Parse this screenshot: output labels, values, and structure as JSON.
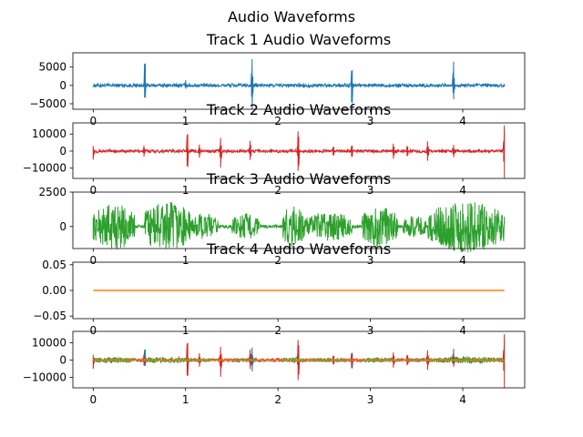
{
  "suptitle": "Audio Waveforms",
  "chart_data": [
    {
      "type": "line",
      "title": "Track 1 Audio Waveforms",
      "xlim": [
        0,
        4.45
      ],
      "ylim": [
        -6500,
        8900
      ],
      "yticks": [
        -5000,
        0,
        5000
      ],
      "xticks": [
        0,
        1,
        2,
        3,
        4
      ],
      "series": [
        {
          "color": "#1f77b4",
          "baseline_amp": 500,
          "spikes": [
            [
              0.56,
              8600,
              -4800
            ],
            [
              1.0,
              1600,
              -1000
            ],
            [
              1.72,
              7600,
              -7000
            ],
            [
              2.8,
              5900,
              -6800
            ],
            [
              3.9,
              7200,
              -4200
            ]
          ]
        }
      ]
    },
    {
      "type": "line",
      "title": "Track 2 Audio Waveforms",
      "xlim": [
        0,
        4.45
      ],
      "ylim": [
        -16000,
        16500
      ],
      "yticks": [
        -10000,
        0,
        10000
      ],
      "xticks": [
        0,
        1,
        2,
        3,
        4
      ],
      "series": [
        {
          "color": "#d62728",
          "baseline_amp": 900,
          "spikes": [
            [
              0.0,
              3000,
              -5000
            ],
            [
              0.55,
              3500,
              -3500
            ],
            [
              1.02,
              14000,
              -13000
            ],
            [
              1.15,
              4000,
              -4000
            ],
            [
              1.38,
              8000,
              -10000
            ],
            [
              1.7,
              7000,
              -6000
            ],
            [
              2.22,
              14500,
              -14500
            ],
            [
              2.6,
              3500,
              -3500
            ],
            [
              2.8,
              4500,
              -4500
            ],
            [
              3.25,
              5000,
              -5000
            ],
            [
              3.4,
              4000,
              -4000
            ],
            [
              3.62,
              6000,
              -6000
            ],
            [
              3.9,
              4000,
              -4000
            ],
            [
              4.45,
              15000,
              -16000
            ]
          ]
        }
      ]
    },
    {
      "type": "line",
      "title": "Track 3 Audio Waveforms",
      "xlim": [
        0,
        4.45
      ],
      "ylim": [
        -1600,
        2500
      ],
      "yticks": [
        0,
        2500
      ],
      "xticks": [
        0,
        1,
        2,
        3,
        4
      ],
      "series": [
        {
          "color": "#2ca02c",
          "baseline_amp": 500,
          "bursts": [
            [
              0.0,
              0.45,
              1700
            ],
            [
              0.55,
              1.05,
              1900
            ],
            [
              1.05,
              1.35,
              1000
            ],
            [
              1.5,
              1.8,
              1000
            ],
            [
              2.05,
              2.3,
              1600
            ],
            [
              2.3,
              2.8,
              1100
            ],
            [
              2.9,
              3.3,
              1500
            ],
            [
              3.35,
              3.6,
              800
            ],
            [
              3.62,
              4.45,
              1900
            ]
          ]
        }
      ]
    },
    {
      "type": "line",
      "title": "Track 4 Audio Waveforms",
      "xlim": [
        0,
        4.45
      ],
      "ylim": [
        -0.055,
        0.055
      ],
      "yticks": [
        -0.05,
        0.0,
        0.05
      ],
      "ytick_labels": [
        "−0.05",
        "0.00",
        "0.05"
      ],
      "xticks": [
        0,
        1,
        2,
        3,
        4
      ],
      "series": [
        {
          "color": "#ff7f0e",
          "constant": 0
        }
      ]
    },
    {
      "type": "line",
      "title": "",
      "xlim": [
        0,
        4.45
      ],
      "ylim": [
        -16000,
        16500
      ],
      "yticks": [
        -10000,
        0,
        10000
      ],
      "xticks": [
        0,
        1,
        2,
        3,
        4
      ],
      "series": [
        {
          "color": "#1f77b4",
          "baseline_amp": 500,
          "spikes": [
            [
              0.56,
              8600,
              -4800
            ],
            [
              1.72,
              7600,
              -7000
            ],
            [
              2.8,
              5900,
              -6800
            ],
            [
              3.9,
              7200,
              -4200
            ]
          ]
        },
        {
          "color": "#d62728",
          "baseline_amp": 900,
          "spikes": [
            [
              0.0,
              3000,
              -5000
            ],
            [
              0.55,
              3500,
              -3500
            ],
            [
              1.02,
              14000,
              -13000
            ],
            [
              1.15,
              4000,
              -4000
            ],
            [
              1.38,
              8000,
              -10000
            ],
            [
              1.7,
              7000,
              -6000
            ],
            [
              2.22,
              14500,
              -14500
            ],
            [
              2.6,
              3500,
              -3500
            ],
            [
              2.8,
              4500,
              -4500
            ],
            [
              3.25,
              5000,
              -5000
            ],
            [
              3.4,
              4000,
              -4000
            ],
            [
              3.62,
              6000,
              -6000
            ],
            [
              3.9,
              4000,
              -4000
            ],
            [
              4.45,
              15000,
              -16000
            ]
          ]
        },
        {
          "color": "#2ca02c",
          "baseline_amp": 500,
          "bursts": [
            [
              0.0,
              0.45,
              1700
            ],
            [
              0.55,
              1.05,
              1900
            ],
            [
              1.05,
              1.35,
              1000
            ],
            [
              1.5,
              1.8,
              1000
            ],
            [
              2.05,
              2.3,
              1600
            ],
            [
              2.3,
              2.8,
              1100
            ],
            [
              2.9,
              3.3,
              1500
            ],
            [
              3.35,
              3.6,
              800
            ],
            [
              3.62,
              4.45,
              1900
            ]
          ]
        },
        {
          "color": "#ff7f0e",
          "constant": 0
        }
      ]
    }
  ]
}
